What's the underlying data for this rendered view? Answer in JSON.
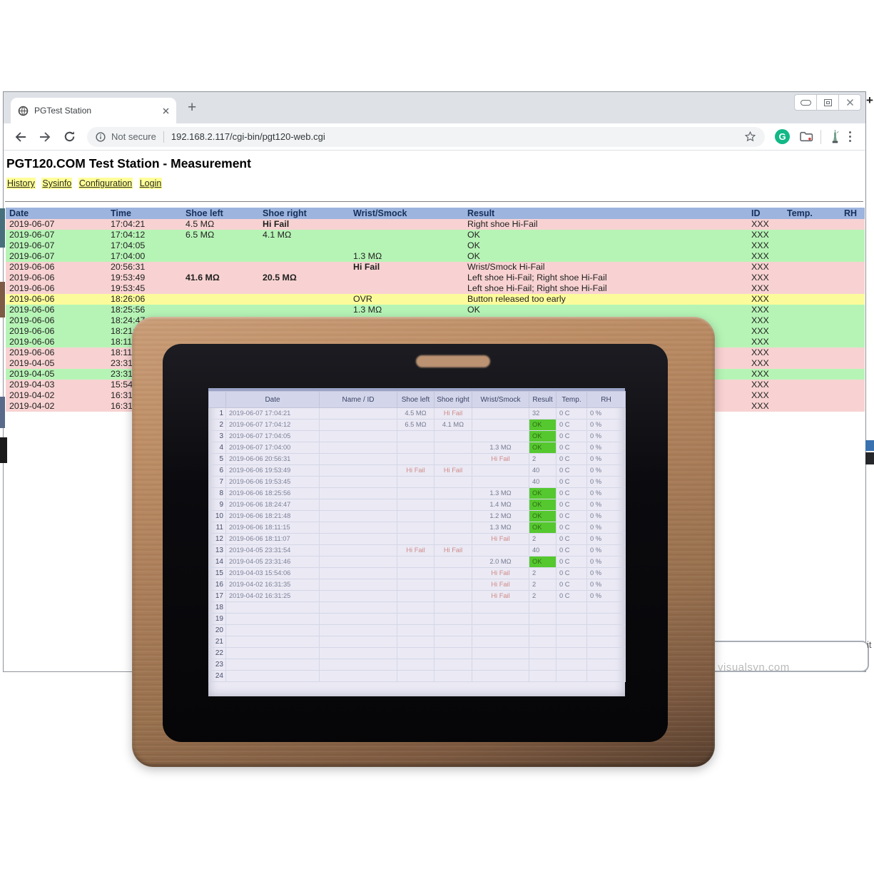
{
  "browser": {
    "tab_title": "PGTest Station",
    "new_tab_label": "+",
    "security_label": "Not secure",
    "url": "192.168.2.117/cgi-bin/pgt120-web.cgi"
  },
  "page": {
    "title": "PGT120.COM Test Station - Measurement",
    "nav_links": [
      "History",
      "Sysinfo",
      "Configuration",
      "Login"
    ],
    "table": {
      "headers": [
        "Date",
        "Time",
        "Shoe left",
        "Shoe right",
        "Wrist/Smock",
        "Result",
        "ID",
        "Temp.",
        "RH"
      ],
      "rows": [
        {
          "date": "2019-06-07",
          "time": "17:04:21",
          "shoe_left": "4.5 MΩ",
          "shoe_right": "Hi Fail",
          "wrist_smock": "",
          "result": "Right shoe Hi-Fail",
          "id": "XXX",
          "temp": "",
          "rh": "",
          "color": "pink",
          "bold": [
            "shoe_right"
          ]
        },
        {
          "date": "2019-06-07",
          "time": "17:04:12",
          "shoe_left": "6.5 MΩ",
          "shoe_right": "4.1 MΩ",
          "wrist_smock": "",
          "result": "OK",
          "id": "XXX",
          "temp": "",
          "rh": "",
          "color": "green",
          "bold": []
        },
        {
          "date": "2019-06-07",
          "time": "17:04:05",
          "shoe_left": "",
          "shoe_right": "",
          "wrist_smock": "",
          "result": "OK",
          "id": "XXX",
          "temp": "",
          "rh": "",
          "color": "green",
          "bold": []
        },
        {
          "date": "2019-06-07",
          "time": "17:04:00",
          "shoe_left": "",
          "shoe_right": "",
          "wrist_smock": "1.3 MΩ",
          "result": "OK",
          "id": "XXX",
          "temp": "",
          "rh": "",
          "color": "green",
          "bold": []
        },
        {
          "date": "2019-06-06",
          "time": "20:56:31",
          "shoe_left": "",
          "shoe_right": "",
          "wrist_smock": "Hi Fail",
          "result": "Wrist/Smock Hi-Fail",
          "id": "XXX",
          "temp": "",
          "rh": "",
          "color": "pink",
          "bold": [
            "wrist_smock"
          ]
        },
        {
          "date": "2019-06-06",
          "time": "19:53:49",
          "shoe_left": "41.6 MΩ",
          "shoe_right": "20.5 MΩ",
          "wrist_smock": "",
          "result": "Left shoe Hi-Fail; Right shoe Hi-Fail",
          "id": "XXX",
          "temp": "",
          "rh": "",
          "color": "pink",
          "bold": [
            "shoe_left",
            "shoe_right"
          ]
        },
        {
          "date": "2019-06-06",
          "time": "19:53:45",
          "shoe_left": "",
          "shoe_right": "",
          "wrist_smock": "",
          "result": "Left shoe Hi-Fail; Right shoe Hi-Fail",
          "id": "XXX",
          "temp": "",
          "rh": "",
          "color": "pink",
          "bold": []
        },
        {
          "date": "2019-06-06",
          "time": "18:26:06",
          "shoe_left": "",
          "shoe_right": "",
          "wrist_smock": "OVR",
          "result": "Button released too early",
          "id": "XXX",
          "temp": "",
          "rh": "",
          "color": "yellow",
          "bold": []
        },
        {
          "date": "2019-06-06",
          "time": "18:25:56",
          "shoe_left": "",
          "shoe_right": "",
          "wrist_smock": "1.3 MΩ",
          "result": "OK",
          "id": "XXX",
          "temp": "",
          "rh": "",
          "color": "green",
          "bold": []
        },
        {
          "date": "2019-06-06",
          "time": "18:24:47",
          "shoe_left": "",
          "shoe_right": "",
          "wrist_smock": "",
          "result": "",
          "id": "XXX",
          "temp": "",
          "rh": "",
          "color": "green",
          "bold": []
        },
        {
          "date": "2019-06-06",
          "time": "18:21:48",
          "shoe_left": "",
          "shoe_right": "",
          "wrist_smock": "",
          "result": "",
          "id": "XXX",
          "temp": "",
          "rh": "",
          "color": "green",
          "bold": []
        },
        {
          "date": "2019-06-06",
          "time": "18:11:15",
          "shoe_left": "",
          "shoe_right": "",
          "wrist_smock": "",
          "result": "",
          "id": "XXX",
          "temp": "",
          "rh": "",
          "color": "green",
          "bold": []
        },
        {
          "date": "2019-06-06",
          "time": "18:11:07",
          "shoe_left": "",
          "shoe_right": "",
          "wrist_smock": "",
          "result": "",
          "id": "XXX",
          "temp": "",
          "rh": "",
          "color": "pink",
          "bold": []
        },
        {
          "date": "2019-04-05",
          "time": "23:31:54",
          "shoe_left": "",
          "shoe_right": "",
          "wrist_smock": "",
          "result": "",
          "id": "XXX",
          "temp": "",
          "rh": "",
          "color": "pink",
          "bold": []
        },
        {
          "date": "2019-04-05",
          "time": "23:31:46",
          "shoe_left": "",
          "shoe_right": "",
          "wrist_smock": "",
          "result": "",
          "id": "XXX",
          "temp": "",
          "rh": "",
          "color": "green",
          "bold": []
        },
        {
          "date": "2019-04-03",
          "time": "15:54:06",
          "shoe_left": "",
          "shoe_right": "",
          "wrist_smock": "",
          "result": "",
          "id": "XXX",
          "temp": "",
          "rh": "",
          "color": "pink",
          "bold": []
        },
        {
          "date": "2019-04-02",
          "time": "16:31:35",
          "shoe_left": "",
          "shoe_right": "",
          "wrist_smock": "",
          "result": "",
          "id": "XXX",
          "temp": "",
          "rh": "",
          "color": "pink",
          "bold": []
        },
        {
          "date": "2019-04-02",
          "time": "16:31:25",
          "shoe_left": "",
          "shoe_right": "",
          "wrist_smock": "",
          "result": "",
          "id": "XXX",
          "temp": "",
          "rh": "",
          "color": "pink",
          "bold": []
        }
      ]
    }
  },
  "device_screen": {
    "headers": [
      "",
      "Date",
      "Name / ID",
      "Shoe left",
      "Shoe right",
      "Wrist/Smock",
      "Result",
      "Temp.",
      "RH"
    ],
    "rows": [
      {
        "n": "1",
        "date": "2019-06-07 17:04:21",
        "name": "",
        "shoe_left": "4.5 MΩ",
        "shoe_right": "Hi Fail",
        "wrist_smock": "",
        "result": "32",
        "temp": "0 C",
        "rh": "0 %",
        "ok": false
      },
      {
        "n": "2",
        "date": "2019-06-07 17:04:12",
        "name": "",
        "shoe_left": "6.5 MΩ",
        "shoe_right": "4.1 MΩ",
        "wrist_smock": "",
        "result": "OK",
        "temp": "0 C",
        "rh": "0 %",
        "ok": true
      },
      {
        "n": "3",
        "date": "2019-06-07 17:04:05",
        "name": "",
        "shoe_left": "",
        "shoe_right": "",
        "wrist_smock": "",
        "result": "OK",
        "temp": "0 C",
        "rh": "0 %",
        "ok": true
      },
      {
        "n": "4",
        "date": "2019-06-07 17:04:00",
        "name": "",
        "shoe_left": "",
        "shoe_right": "",
        "wrist_smock": "1.3 MΩ",
        "result": "OK",
        "temp": "0 C",
        "rh": "0 %",
        "ok": true
      },
      {
        "n": "5",
        "date": "2019-06-06 20:56:31",
        "name": "",
        "shoe_left": "",
        "shoe_right": "",
        "wrist_smock": "Hi Fail",
        "result": "2",
        "temp": "0 C",
        "rh": "0 %",
        "ok": false
      },
      {
        "n": "6",
        "date": "2019-06-06 19:53:49",
        "name": "",
        "shoe_left": "Hi Fail",
        "shoe_right": "Hi Fail",
        "wrist_smock": "",
        "result": "40",
        "temp": "0 C",
        "rh": "0 %",
        "ok": false
      },
      {
        "n": "7",
        "date": "2019-06-06 19:53:45",
        "name": "",
        "shoe_left": "",
        "shoe_right": "",
        "wrist_smock": "",
        "result": "40",
        "temp": "0 C",
        "rh": "0 %",
        "ok": false
      },
      {
        "n": "8",
        "date": "2019-06-06 18:25:56",
        "name": "",
        "shoe_left": "",
        "shoe_right": "",
        "wrist_smock": "1.3 MΩ",
        "result": "OK",
        "temp": "0 C",
        "rh": "0 %",
        "ok": true
      },
      {
        "n": "9",
        "date": "2019-06-06 18:24:47",
        "name": "",
        "shoe_left": "",
        "shoe_right": "",
        "wrist_smock": "1.4 MΩ",
        "result": "OK",
        "temp": "0 C",
        "rh": "0 %",
        "ok": true
      },
      {
        "n": "10",
        "date": "2019-06-06 18:21:48",
        "name": "",
        "shoe_left": "",
        "shoe_right": "",
        "wrist_smock": "1.2 MΩ",
        "result": "OK",
        "temp": "0 C",
        "rh": "0 %",
        "ok": true
      },
      {
        "n": "11",
        "date": "2019-06-06 18:11:15",
        "name": "",
        "shoe_left": "",
        "shoe_right": "",
        "wrist_smock": "1.3 MΩ",
        "result": "OK",
        "temp": "0 C",
        "rh": "0 %",
        "ok": true
      },
      {
        "n": "12",
        "date": "2019-06-06 18:11:07",
        "name": "",
        "shoe_left": "",
        "shoe_right": "",
        "wrist_smock": "Hi Fail",
        "result": "2",
        "temp": "0 C",
        "rh": "0 %",
        "ok": false
      },
      {
        "n": "13",
        "date": "2019-04-05 23:31:54",
        "name": "",
        "shoe_left": "Hi Fail",
        "shoe_right": "Hi Fail",
        "wrist_smock": "",
        "result": "40",
        "temp": "0 C",
        "rh": "0 %",
        "ok": false
      },
      {
        "n": "14",
        "date": "2019-04-05 23:31:46",
        "name": "",
        "shoe_left": "",
        "shoe_right": "",
        "wrist_smock": "2.0 MΩ",
        "result": "OK",
        "temp": "0 C",
        "rh": "0 %",
        "ok": true
      },
      {
        "n": "15",
        "date": "2019-04-03 15:54:06",
        "name": "",
        "shoe_left": "",
        "shoe_right": "",
        "wrist_smock": "Hi Fail",
        "result": "2",
        "temp": "0 C",
        "rh": "0 %",
        "ok": false
      },
      {
        "n": "16",
        "date": "2019-04-02 16:31:35",
        "name": "",
        "shoe_left": "",
        "shoe_right": "",
        "wrist_smock": "Hi Fail",
        "result": "2",
        "temp": "0 C",
        "rh": "0 %",
        "ok": false
      },
      {
        "n": "17",
        "date": "2019-04-02 16:31:25",
        "name": "",
        "shoe_left": "",
        "shoe_right": "",
        "wrist_smock": "Hi Fail",
        "result": "2",
        "temp": "0 C",
        "rh": "0 %",
        "ok": false
      },
      {
        "n": "18"
      },
      {
        "n": "19"
      },
      {
        "n": "20"
      },
      {
        "n": "21"
      },
      {
        "n": "22"
      },
      {
        "n": "23"
      },
      {
        "n": "24"
      }
    ]
  },
  "watermark": "visualsvn.com",
  "fragments": {
    "right_edge_text": "it",
    "right_edge_plus": "+"
  },
  "colors": {
    "row_pink": "#f8d2d2",
    "row_green": "#b6f4b6",
    "row_yellow": "#fbfb9b",
    "header_blue": "#9db4de",
    "link_highlight": "#ffff99",
    "device_ok_green": "#55c82f",
    "device_fail_red": "#d08b88",
    "bronze_bezel": "#a97e58",
    "grammarly_green": "#12b886"
  }
}
